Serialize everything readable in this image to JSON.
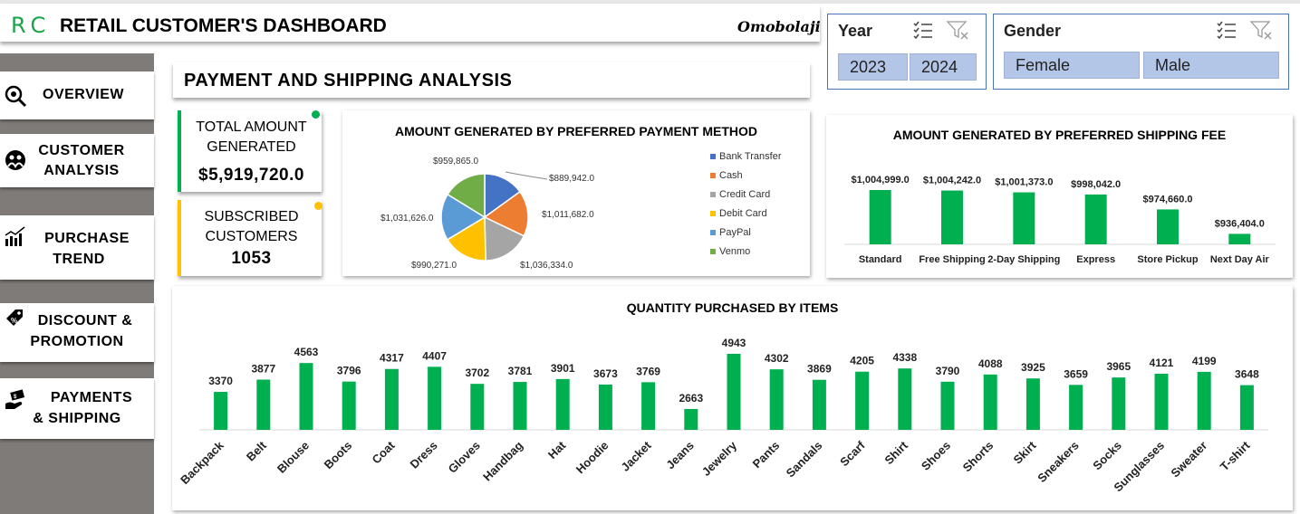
{
  "header": {
    "logo": "RC",
    "title": "RETAIL CUSTOMER'S DASHBOARD",
    "author": "Omobolaji"
  },
  "slicers": {
    "year": {
      "title": "Year",
      "options": [
        "2023",
        "2024"
      ]
    },
    "gender": {
      "title": "Gender",
      "options": [
        "Female",
        "Male"
      ]
    }
  },
  "nav": [
    {
      "label": "OVERVIEW",
      "icon": "magnifier-eye-icon"
    },
    {
      "label": "CUSTOMER ANALYSIS",
      "line1": "CUSTOMER",
      "line2": "ANALYSIS",
      "icon": "people-group-icon"
    },
    {
      "label": "PURCHASE TREND",
      "line1": "PURCHASE",
      "line2": "TREND",
      "icon": "trend-chart-icon"
    },
    {
      "label": "DISCOUNT & PROMOTION",
      "line1": "DISCOUNT &",
      "line2": "PROMOTION",
      "icon": "price-tag-icon"
    },
    {
      "label": "PAYMENTS & SHIPPING",
      "line1": "PAYMENTS",
      "line2": "& SHIPPING",
      "icon": "hand-money-icon"
    }
  ],
  "page_title": "PAYMENT AND SHIPPING ANALYSIS",
  "kpis": {
    "total_amount": {
      "line1": "TOTAL AMOUNT",
      "line2": "GENERATED",
      "value": "$5,919,720.0",
      "color": "#00b050"
    },
    "subscribed": {
      "line1": "SUBSCRIBED",
      "line2": "CUSTOMERS",
      "value": "1053",
      "color": "#ffc000"
    }
  },
  "chart_data": [
    {
      "type": "pie",
      "title": "AMOUNT GENERATED BY PREFERRED PAYMENT METHOD",
      "categories": [
        "Bank Transfer",
        "Cash",
        "Credit Card",
        "Debit Card",
        "PayPal",
        "Venmo"
      ],
      "values": [
        889942.0,
        1011682.0,
        1036334.0,
        990271.0,
        1031626.0,
        959865.0
      ],
      "data_labels": [
        "$889,942.0",
        "$1,011,682.0",
        "$1,036,334.0",
        "$990,271.0",
        "$1,031,626.0",
        "$959,865.0"
      ],
      "colors": [
        "#4472c4",
        "#ed7d31",
        "#a5a5a5",
        "#ffc000",
        "#5b9bd5",
        "#70ad47"
      ],
      "legend": "right"
    },
    {
      "type": "bar",
      "title": "AMOUNT GENERATED BY PREFERRED SHIPPING FEE",
      "categories": [
        "Standard",
        "Free Shipping",
        "2-Day Shipping",
        "Express",
        "Store Pickup",
        "Next Day Air"
      ],
      "values": [
        1004999.0,
        1004242.0,
        1001373.0,
        998042.0,
        974660.0,
        936404.0
      ],
      "data_labels": [
        "$1,004,999.0",
        "$1,004,242.0",
        "$1,001,373.0",
        "$998,042.0",
        "$974,660.0",
        "$936,404.0"
      ],
      "color": "#00b050",
      "grid": false
    },
    {
      "type": "bar",
      "title": "QUANTITY PURCHASED BY ITEMS",
      "categories": [
        "Backpack",
        "Belt",
        "Blouse",
        "Boots",
        "Coat",
        "Dress",
        "Gloves",
        "Handbag",
        "Hat",
        "Hoodie",
        "Jacket",
        "Jeans",
        "Jewelry",
        "Pants",
        "Sandals",
        "Scarf",
        "Shirt",
        "Shoes",
        "Shorts",
        "Skirt",
        "Sneakers",
        "Socks",
        "Sunglasses",
        "Sweater",
        "T-shirt"
      ],
      "values": [
        3370,
        3877,
        4563,
        3796,
        4317,
        4407,
        3702,
        3781,
        3901,
        3673,
        3769,
        2663,
        4943,
        4302,
        3869,
        4205,
        4338,
        3790,
        4088,
        3925,
        3659,
        3965,
        4121,
        4199,
        3648
      ],
      "color": "#00b050",
      "grid": false
    }
  ]
}
